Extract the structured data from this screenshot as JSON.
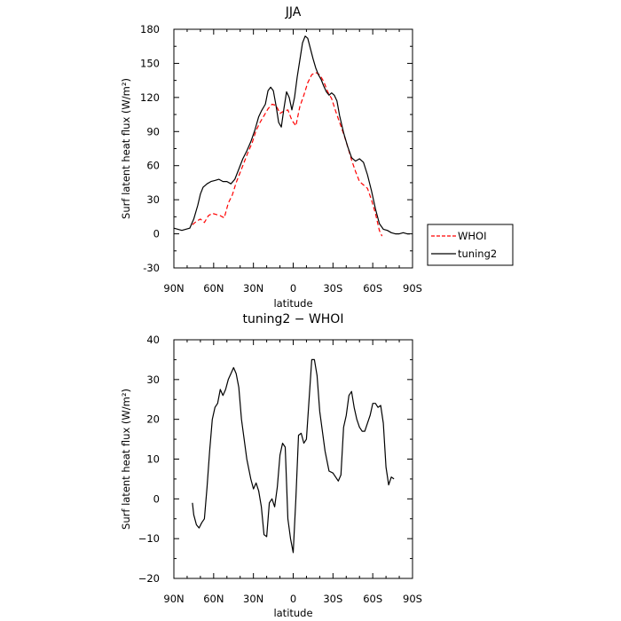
{
  "chart_data": [
    {
      "type": "line",
      "title": "JJA",
      "xlabel": "latitude",
      "ylabel": "Surf latent heat flux (W/m²)",
      "xlim": [
        90,
        -90
      ],
      "ylim": [
        -30,
        180
      ],
      "x_ticks": [
        90,
        60,
        30,
        0,
        -30,
        -60,
        -90
      ],
      "x_tick_labels": [
        "90N",
        "60N",
        "30N",
        "0",
        "30S",
        "60S",
        "90S"
      ],
      "y_ticks": [
        -30,
        0,
        30,
        60,
        90,
        120,
        150,
        180
      ],
      "y_tick_labels": [
        "-30",
        "0",
        "30",
        "60",
        "90",
        "120",
        "150",
        "180"
      ],
      "grid": false,
      "legend_position": "right",
      "series": [
        {
          "name": "WHOI",
          "color": "#ff0000",
          "dash": "dashed",
          "points": [
            [
              76,
              8
            ],
            [
              73,
              11
            ],
            [
              70,
              13
            ],
            [
              67,
              10
            ],
            [
              64,
              16
            ],
            [
              61,
              18
            ],
            [
              58,
              17
            ],
            [
              55,
              16
            ],
            [
              52,
              14
            ],
            [
              49,
              27
            ],
            [
              46,
              34
            ],
            [
              43,
              45
            ],
            [
              40,
              54
            ],
            [
              37,
              63
            ],
            [
              34,
              72
            ],
            [
              31,
              80
            ],
            [
              28,
              91
            ],
            [
              25,
              98
            ],
            [
              22,
              104
            ],
            [
              19,
              110
            ],
            [
              16,
              114
            ],
            [
              13,
              113
            ],
            [
              10,
              106
            ],
            [
              7,
              108
            ],
            [
              4,
              109
            ],
            [
              1,
              100
            ],
            [
              -2,
              95
            ],
            [
              -5,
              112
            ],
            [
              -8,
              122
            ],
            [
              -11,
              133
            ],
            [
              -14,
              140
            ],
            [
              -17,
              142
            ],
            [
              -20,
              140
            ],
            [
              -23,
              134
            ],
            [
              -26,
              125
            ],
            [
              -29,
              119
            ],
            [
              -32,
              108
            ],
            [
              -35,
              98
            ],
            [
              -38,
              88
            ],
            [
              -41,
              77
            ],
            [
              -44,
              65
            ],
            [
              -47,
              55
            ],
            [
              -50,
              46
            ],
            [
              -53,
              43
            ],
            [
              -56,
              40
            ],
            [
              -59,
              30
            ],
            [
              -62,
              18
            ],
            [
              -65,
              3
            ],
            [
              -67,
              -2
            ]
          ]
        },
        {
          "name": "tuning2",
          "color": "#000000",
          "dash": "solid",
          "points": [
            [
              90,
              5
            ],
            [
              87,
              4
            ],
            [
              84,
              3
            ],
            [
              81,
              4
            ],
            [
              78,
              5
            ],
            [
              75,
              13
            ],
            [
              72,
              25
            ],
            [
              70,
              35
            ],
            [
              68,
              41
            ],
            [
              65,
              44
            ],
            [
              62,
              46
            ],
            [
              59,
              47
            ],
            [
              56,
              48
            ],
            [
              53,
              46
            ],
            [
              50,
              46
            ],
            [
              47,
              44
            ],
            [
              44,
              48
            ],
            [
              41,
              57
            ],
            [
              38,
              66
            ],
            [
              35,
              73
            ],
            [
              32,
              81
            ],
            [
              29,
              91
            ],
            [
              26,
              103
            ],
            [
              24,
              108
            ],
            [
              21,
              114
            ],
            [
              19,
              126
            ],
            [
              17,
              129
            ],
            [
              15,
              126
            ],
            [
              13,
              113
            ],
            [
              11,
              98
            ],
            [
              9,
              94
            ],
            [
              7,
              110
            ],
            [
              5,
              125
            ],
            [
              3,
              120
            ],
            [
              1,
              109
            ],
            [
              -1,
              120
            ],
            [
              -3,
              138
            ],
            [
              -5,
              153
            ],
            [
              -7,
              168
            ],
            [
              -9,
              174
            ],
            [
              -11,
              172
            ],
            [
              -13,
              163
            ],
            [
              -15,
              154
            ],
            [
              -17,
              146
            ],
            [
              -19,
              140
            ],
            [
              -21,
              136
            ],
            [
              -23,
              130
            ],
            [
              -25,
              125
            ],
            [
              -27,
              122
            ],
            [
              -29,
              124
            ],
            [
              -31,
              122
            ],
            [
              -33,
              117
            ],
            [
              -35,
              104
            ],
            [
              -38,
              89
            ],
            [
              -41,
              77
            ],
            [
              -44,
              67
            ],
            [
              -47,
              64
            ],
            [
              -50,
              66
            ],
            [
              -53,
              63
            ],
            [
              -56,
              52
            ],
            [
              -59,
              38
            ],
            [
              -62,
              22
            ],
            [
              -65,
              9
            ],
            [
              -68,
              4
            ],
            [
              -71,
              3
            ],
            [
              -74,
              1
            ],
            [
              -77,
              0
            ],
            [
              -80,
              0
            ],
            [
              -83,
              1
            ],
            [
              -86,
              0
            ],
            [
              -88,
              0
            ]
          ]
        }
      ]
    },
    {
      "type": "line",
      "title": "tuning2 − WHOI",
      "xlabel": "latitude",
      "ylabel": "Surf latent heat flux (W/m²)",
      "xlim": [
        90,
        -90
      ],
      "ylim": [
        -20,
        40
      ],
      "x_ticks": [
        90,
        60,
        30,
        0,
        -30,
        -60,
        -90
      ],
      "x_tick_labels": [
        "90N",
        "60N",
        "30N",
        "0",
        "30S",
        "60S",
        "90S"
      ],
      "y_ticks": [
        -20,
        -10,
        0,
        10,
        20,
        30,
        40
      ],
      "y_tick_labels": [
        "−20",
        "−10",
        "0",
        "10",
        "20",
        "30",
        "40"
      ],
      "grid": false,
      "series": [
        {
          "name": "tuning2 − WHOI",
          "color": "#000000",
          "dash": "solid",
          "points": [
            [
              76,
              -1
            ],
            [
              75,
              -4
            ],
            [
              73,
              -6.5
            ],
            [
              71,
              -7.3
            ],
            [
              69,
              -6
            ],
            [
              67,
              -5
            ],
            [
              65,
              3
            ],
            [
              63,
              12
            ],
            [
              61,
              20
            ],
            [
              59,
              23
            ],
            [
              57,
              24
            ],
            [
              55,
              27.5
            ],
            [
              53,
              26
            ],
            [
              51,
              27.5
            ],
            [
              49,
              30
            ],
            [
              47,
              31.5
            ],
            [
              45,
              33
            ],
            [
              43,
              31.5
            ],
            [
              41,
              28
            ],
            [
              39,
              20
            ],
            [
              37,
              15
            ],
            [
              35,
              10
            ],
            [
              32,
              5
            ],
            [
              30,
              2.5
            ],
            [
              28,
              4
            ],
            [
              26,
              2
            ],
            [
              24,
              -2
            ],
            [
              22,
              -9
            ],
            [
              20,
              -9.5
            ],
            [
              18,
              -1
            ],
            [
              16,
              0
            ],
            [
              14,
              -2
            ],
            [
              12,
              3
            ],
            [
              10,
              11
            ],
            [
              8,
              14
            ],
            [
              6,
              13
            ],
            [
              4,
              -5
            ],
            [
              2,
              -10
            ],
            [
              0,
              -13.5
            ],
            [
              -2,
              0
            ],
            [
              -4,
              16
            ],
            [
              -6,
              16.5
            ],
            [
              -8,
              14
            ],
            [
              -10,
              15
            ],
            [
              -12,
              25
            ],
            [
              -14,
              35
            ],
            [
              -16,
              35
            ],
            [
              -18,
              31
            ],
            [
              -20,
              22
            ],
            [
              -22,
              17
            ],
            [
              -24,
              12
            ],
            [
              -27,
              7
            ],
            [
              -30,
              6.5
            ],
            [
              -32,
              5.5
            ],
            [
              -34,
              4.5
            ],
            [
              -36,
              6
            ],
            [
              -38,
              18
            ],
            [
              -40,
              21
            ],
            [
              -42,
              26
            ],
            [
              -44,
              27
            ],
            [
              -46,
              23
            ],
            [
              -48,
              20
            ],
            [
              -50,
              18
            ],
            [
              -52,
              17
            ],
            [
              -54,
              17
            ],
            [
              -56,
              19
            ],
            [
              -58,
              21
            ],
            [
              -60,
              24
            ],
            [
              -62,
              24
            ],
            [
              -64,
              23
            ],
            [
              -66,
              23.5
            ],
            [
              -68,
              19
            ],
            [
              -70,
              8
            ],
            [
              -72,
              3.5
            ],
            [
              -74,
              5.5
            ],
            [
              -76,
              5
            ]
          ]
        }
      ]
    }
  ],
  "legend": {
    "items": [
      {
        "label": "WHOI",
        "color": "#ff0000",
        "dash": "dashed"
      },
      {
        "label": "tuning2",
        "color": "#000000",
        "dash": "solid"
      }
    ]
  }
}
